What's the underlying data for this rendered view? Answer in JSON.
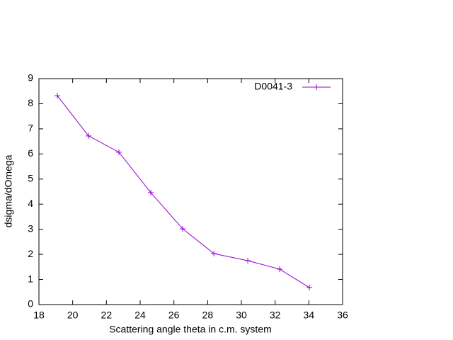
{
  "chart_data": {
    "type": "line",
    "x_label": "Scattering angle theta in c.m. system",
    "y_label": "dsigma/dOmega",
    "x": [
      19.09,
      20.94,
      22.74,
      24.63,
      26.52,
      28.37,
      30.38,
      32.27,
      34.03
    ],
    "series": [
      {
        "name": "D0041-3",
        "color": "#9400d3",
        "values": [
          8.32,
          6.72,
          6.07,
          4.46,
          3.02,
          2.03,
          1.75,
          1.41,
          0.68
        ]
      }
    ],
    "xlim": [
      18,
      36
    ],
    "xticks": [
      18,
      20,
      22,
      24,
      26,
      28,
      30,
      32,
      34,
      36
    ],
    "ylim": [
      0,
      9
    ],
    "yticks": [
      0,
      1,
      2,
      3,
      4,
      5,
      6,
      7,
      8,
      9
    ],
    "legend": "top-right",
    "marker": "plus"
  }
}
